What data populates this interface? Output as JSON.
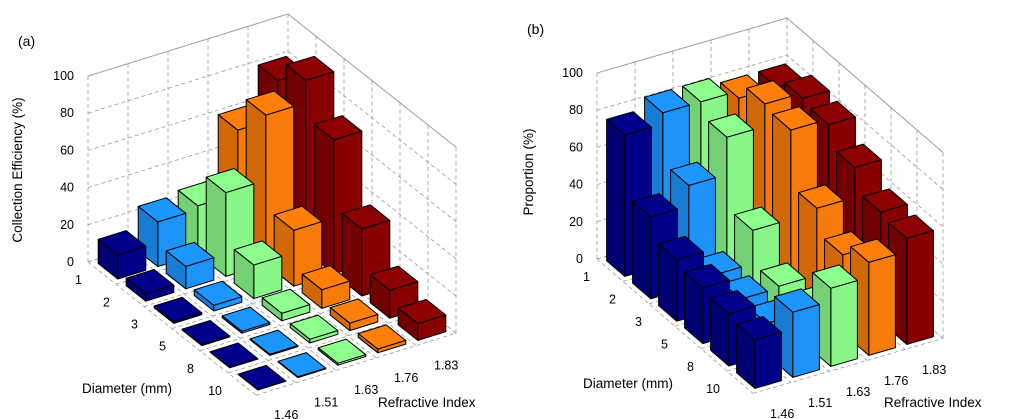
{
  "chart_data": [
    {
      "type": "bar3d",
      "panel_label": "(a)",
      "zlabel": "Collection Efficiency (%)",
      "xlabel": "Diameter (mm)",
      "ylabel": "Refractive Index",
      "diameters": [
        "1",
        "2",
        "3",
        "5",
        "8",
        "10"
      ],
      "refractive_indices": [
        "1.46",
        "1.51",
        "1.63",
        "1.76",
        "1.83"
      ],
      "zticks": [
        "0",
        "20",
        "40",
        "60",
        "80",
        "100"
      ],
      "zlim": [
        0,
        100
      ],
      "grid": true,
      "series": [
        {
          "values": [
            13,
            4,
            1,
            0.5,
            0.3,
            0.2
          ]
        },
        {
          "values": [
            24,
            12,
            3,
            1,
            0.6,
            0.4
          ]
        },
        {
          "values": [
            26,
            45,
            18,
            4,
            2,
            1
          ]
        },
        {
          "values": [
            60,
            80,
            30,
            10,
            4,
            2
          ]
        },
        {
          "values": [
            80,
            92,
            72,
            36,
            15,
            9
          ]
        }
      ]
    },
    {
      "type": "bar3d",
      "panel_label": "(b)",
      "zlabel": "Proportion (%)",
      "xlabel": "Diameter (mm)",
      "ylabel": "Refractive Index",
      "diameters": [
        "1",
        "2",
        "3",
        "5",
        "8",
        "10"
      ],
      "refractive_indices": [
        "1.46",
        "1.51",
        "1.63",
        "1.76",
        "1.83"
      ],
      "zticks": [
        "0",
        "20",
        "40",
        "60",
        "80",
        "100"
      ],
      "zlim": [
        0,
        100
      ],
      "grid": true,
      "series": [
        {
          "values": [
            76,
            44,
            33,
            30,
            28,
            26
          ]
        },
        {
          "values": [
            82,
            55,
            19,
            18,
            17,
            35
          ]
        },
        {
          "values": [
            82,
            75,
            37,
            19,
            18,
            42
          ]
        },
        {
          "values": [
            78,
            87,
            85,
            55,
            42,
            50
          ]
        },
        {
          "values": [
            78,
            84,
            82,
            71,
            59,
            57
          ]
        }
      ]
    }
  ],
  "colors": [
    "#00008c",
    "#1e96ff",
    "#8cff8c",
    "#ff7f0a",
    "#8c0000"
  ]
}
